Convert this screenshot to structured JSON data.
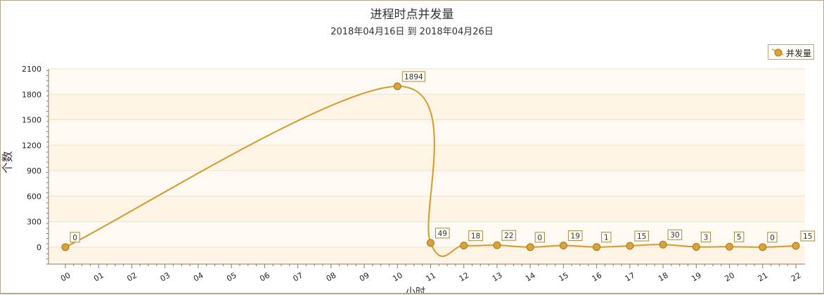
{
  "chart_data": {
    "type": "line",
    "title": "进程时点并发量",
    "subtitle": "2018年04月16日 到 2018年04月26日",
    "ylabel": "个数",
    "xlabel": "小时",
    "categories": [
      "00",
      "01",
      "02",
      "03",
      "04",
      "05",
      "06",
      "07",
      "08",
      "09",
      "10",
      "11",
      "12",
      "13",
      "14",
      "15",
      "16",
      "17",
      "18",
      "19",
      "20",
      "21",
      "22"
    ],
    "series": [
      {
        "name": "并发量",
        "color": "#d49a2a",
        "points": [
          {
            "x": "00",
            "y": 0
          },
          {
            "x": "10",
            "y": 1894
          },
          {
            "x": "11",
            "y": 49
          },
          {
            "x": "12",
            "y": 18
          },
          {
            "x": "13",
            "y": 22
          },
          {
            "x": "14",
            "y": 0
          },
          {
            "x": "15",
            "y": 19
          },
          {
            "x": "16",
            "y": 1
          },
          {
            "x": "17",
            "y": 15
          },
          {
            "x": "18",
            "y": 30
          },
          {
            "x": "19",
            "y": 3
          },
          {
            "x": "20",
            "y": 5
          },
          {
            "x": "21",
            "y": 0
          },
          {
            "x": "22",
            "y": 15
          }
        ]
      }
    ],
    "yticks": [
      0,
      300,
      600,
      900,
      1200,
      1500,
      1800,
      2100
    ],
    "ylim": [
      -200,
      2100
    ],
    "grid": true,
    "legend_position": "top-right"
  }
}
